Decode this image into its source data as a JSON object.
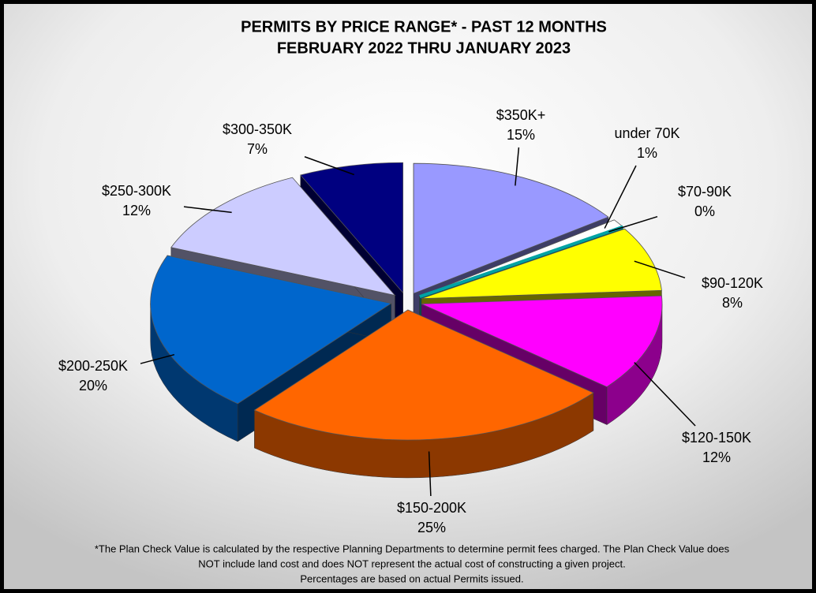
{
  "chart_data": {
    "type": "pie",
    "title": "PERMITS BY PRICE RANGE* - PAST 12 MONTHS",
    "subtitle": "FEBRUARY 2022 THRU JANUARY 2023",
    "categories": [
      "$350K+",
      "under 70K",
      "$70-90K",
      "$90-120K",
      "$120-150K",
      "$150-200K",
      "$200-250K",
      "$250-300K",
      "$300-350K"
    ],
    "values": [
      15,
      1,
      0,
      8,
      12,
      25,
      20,
      12,
      7
    ],
    "value_labels": [
      "15%",
      "1%",
      "0%",
      "8%",
      "12%",
      "25%",
      "20%",
      "12%",
      "7%"
    ],
    "colors": [
      "#9999ff",
      "#ffffff",
      "#00cccc",
      "#ffff00",
      "#ff00ff",
      "#ff6600",
      "#0066cc",
      "#ccccff",
      "#000080"
    ],
    "notes": [
      "*The Plan Check Value is calculated by the respective Planning Departments to determine permit fees charged.  The Plan Check Value does",
      "NOT include land cost and does NOT represent the actual cost of constructing a given project.",
      "Percentages are based on actual Permits issued."
    ]
  }
}
